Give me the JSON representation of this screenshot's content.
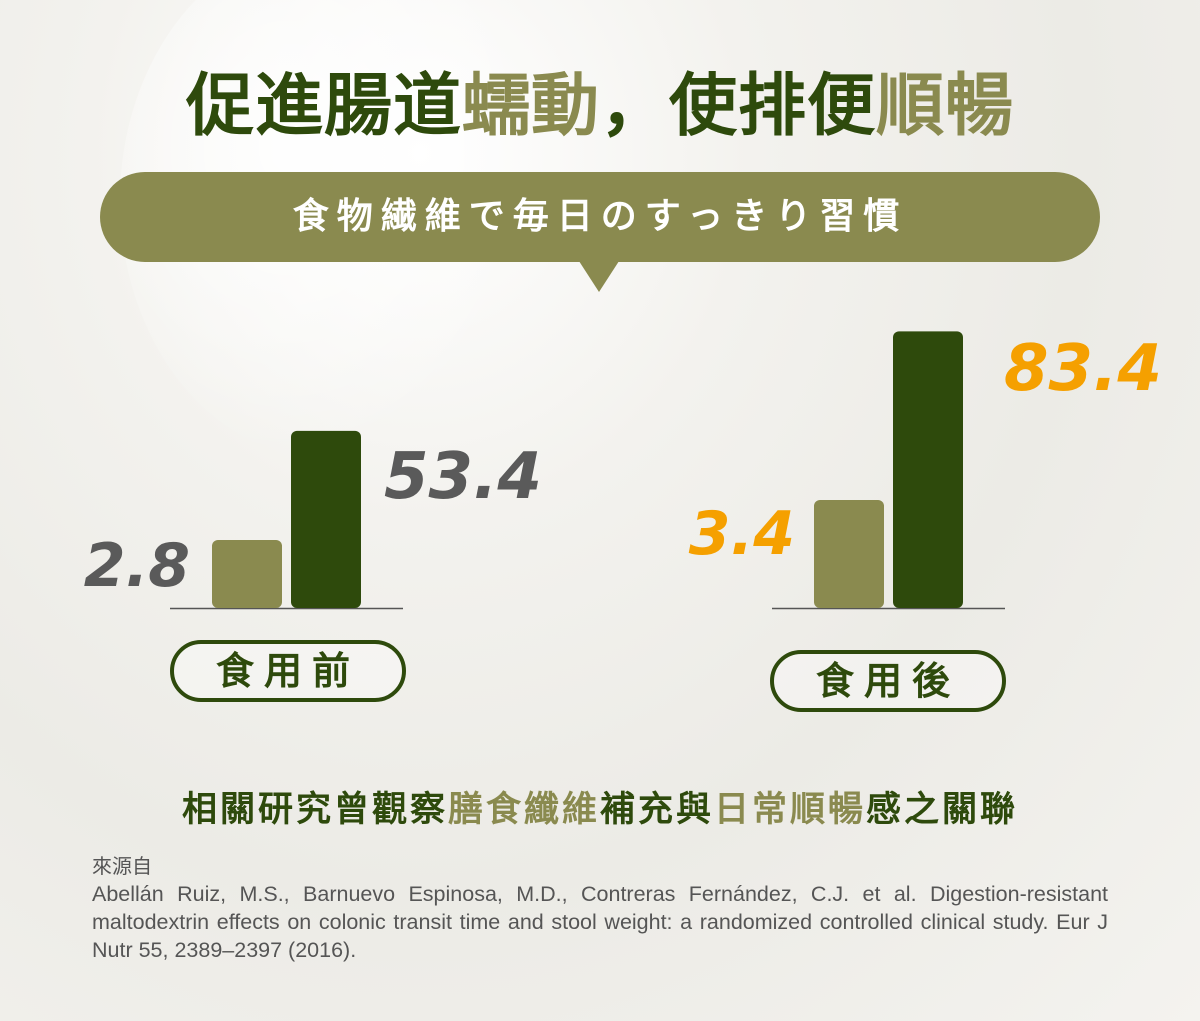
{
  "title": {
    "part1": "促進腸道",
    "part2": "蠕動",
    "part3": "，使排便",
    "part4": "順暢"
  },
  "banner": {
    "text": "食物繊維で毎日のすっきり習慣"
  },
  "chart_data": {
    "type": "bar",
    "groups": [
      {
        "label": "食用前",
        "values": [
          2.8,
          53.4
        ],
        "value_labels": [
          "2.8",
          "53.4"
        ],
        "label_color": "#5a5a5a"
      },
      {
        "label": "食用後",
        "values": [
          3.4,
          83.4
        ],
        "value_labels": [
          "3.4",
          "83.4"
        ],
        "label_color": "#f5a000"
      }
    ],
    "bar_colors": [
      "#8a8a4f",
      "#2e4a0c"
    ],
    "ylim": [
      0,
      90
    ]
  },
  "subtitle": {
    "s1": "相關研究曾觀察",
    "s2": "膳食纖維",
    "s3": "補充與",
    "s4": "日常順暢",
    "s5": "感之關聯"
  },
  "source": {
    "label": "來源自",
    "citation": "Abellán Ruiz, M.S., Barnuevo Espinosa, M.D., Contreras Fernández, C.J. et al. Digestion-resistant maltodextrin effects on colonic transit time and stool weight: a randomized controlled clinical study. Eur J Nutr 55, 2389–2397 (2016)."
  },
  "colors": {
    "dark_green": "#2e4a0c",
    "olive": "#8a8a4f",
    "orange": "#f5a000",
    "gray": "#5a5a5a"
  }
}
